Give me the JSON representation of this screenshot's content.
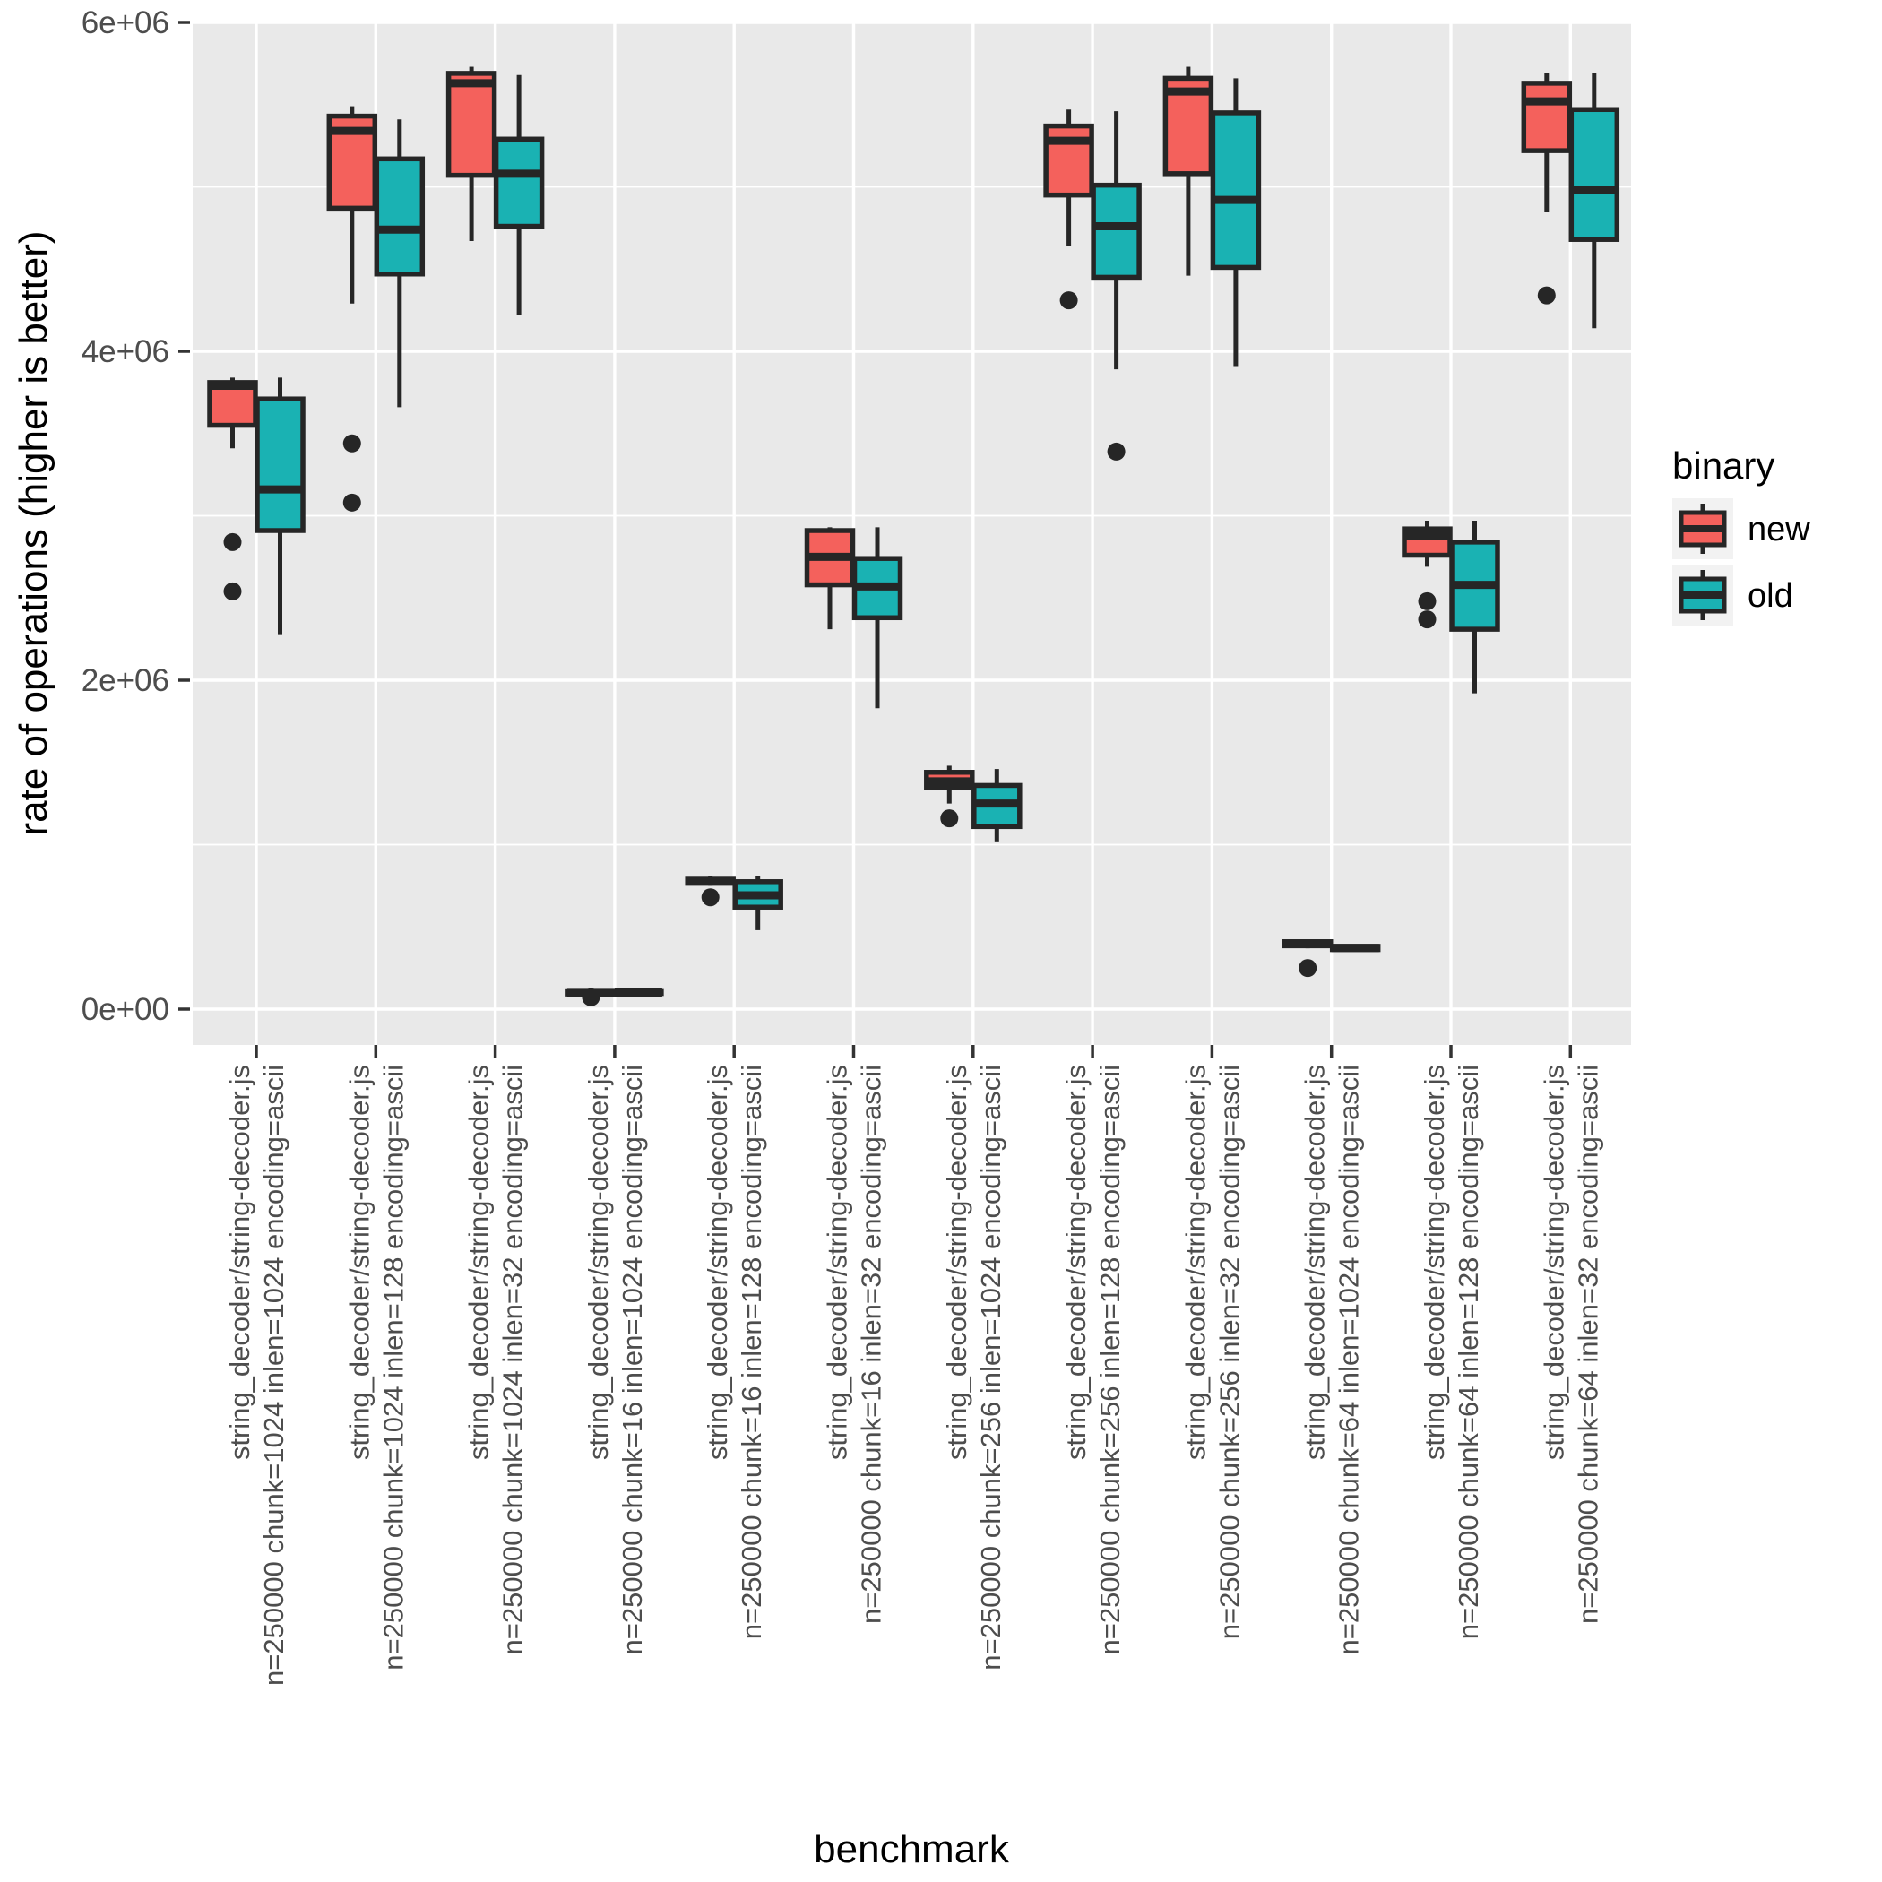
{
  "chart_data": {
    "type": "boxplot",
    "xlabel": "benchmark",
    "ylabel": "rate of operations (higher is better)",
    "y_ticks": [
      {
        "label": "0e+00",
        "value": 0
      },
      {
        "label": "2e+06",
        "value": 2000000
      },
      {
        "label": "4e+06",
        "value": 4000000
      },
      {
        "label": "6e+06",
        "value": 6000000
      }
    ],
    "ylim": [
      -213000,
      6005000
    ],
    "grid": "on",
    "legend_position": "right",
    "legend": {
      "title": "binary",
      "entries": [
        {
          "label": "new",
          "color": "#F4615C"
        },
        {
          "label": "old",
          "color": "#1AB2B3"
        }
      ]
    },
    "colors": {
      "panel_bg": "#E9E9E9",
      "gridline": "#FFFFFF",
      "box_stroke": "#262626",
      "axis_text": "#4D4D4D",
      "key_bg": "#F2F2F2"
    },
    "categories": [
      {
        "line1": "string_decoder/string-decoder.js",
        "line2": "n=250000 chunk=1024 inlen=1024 encoding=ascii"
      },
      {
        "line1": "string_decoder/string-decoder.js",
        "line2": "n=250000 chunk=1024 inlen=128 encoding=ascii"
      },
      {
        "line1": "string_decoder/string-decoder.js",
        "line2": "n=250000 chunk=1024 inlen=32 encoding=ascii"
      },
      {
        "line1": "string_decoder/string-decoder.js",
        "line2": "n=250000 chunk=16 inlen=1024 encoding=ascii"
      },
      {
        "line1": "string_decoder/string-decoder.js",
        "line2": "n=250000 chunk=16 inlen=128 encoding=ascii"
      },
      {
        "line1": "string_decoder/string-decoder.js",
        "line2": "n=250000 chunk=16 inlen=32 encoding=ascii"
      },
      {
        "line1": "string_decoder/string-decoder.js",
        "line2": "n=250000 chunk=256 inlen=1024 encoding=ascii"
      },
      {
        "line1": "string_decoder/string-decoder.js",
        "line2": "n=250000 chunk=256 inlen=128 encoding=ascii"
      },
      {
        "line1": "string_decoder/string-decoder.js",
        "line2": "n=250000 chunk=256 inlen=32 encoding=ascii"
      },
      {
        "line1": "string_decoder/string-decoder.js",
        "line2": "n=250000 chunk=64 inlen=1024 encoding=ascii"
      },
      {
        "line1": "string_decoder/string-decoder.js",
        "line2": "n=250000 chunk=64 inlen=128 encoding=ascii"
      },
      {
        "line1": "string_decoder/string-decoder.js",
        "line2": "n=250000 chunk=64 inlen=32 encoding=ascii"
      }
    ],
    "series": [
      {
        "name": "new",
        "color": "#F4615C",
        "boxes": [
          {
            "whislo": 3410000,
            "q1": 3550000,
            "med": 3790000,
            "q3": 3810000,
            "whishi": 3840000,
            "outliers": [
              2840000,
              2540000
            ]
          },
          {
            "whislo": 4290000,
            "q1": 4870000,
            "med": 5340000,
            "q3": 5430000,
            "whishi": 5490000,
            "outliers": [
              3440000,
              3080000
            ]
          },
          {
            "whislo": 4670000,
            "q1": 5070000,
            "med": 5630000,
            "q3": 5690000,
            "whishi": 5730000,
            "outliers": []
          },
          {
            "whislo": 85000,
            "q1": 92000,
            "med": 99000,
            "q3": 106000,
            "whishi": 113000,
            "outliers": [
              72000
            ]
          },
          {
            "whislo": 750000,
            "q1": 765000,
            "med": 778000,
            "q3": 790000,
            "whishi": 812000,
            "outliers": [
              680000
            ]
          },
          {
            "whislo": 2310000,
            "q1": 2580000,
            "med": 2750000,
            "q3": 2910000,
            "whishi": 2930000,
            "outliers": []
          },
          {
            "whislo": 1250000,
            "q1": 1350000,
            "med": 1385000,
            "q3": 1440000,
            "whishi": 1480000,
            "outliers": [
              1160000
            ]
          },
          {
            "whislo": 4640000,
            "q1": 4950000,
            "med": 5280000,
            "q3": 5370000,
            "whishi": 5470000,
            "outliers": [
              4310000
            ]
          },
          {
            "whislo": 4460000,
            "q1": 5080000,
            "med": 5580000,
            "q3": 5660000,
            "whishi": 5730000,
            "outliers": []
          },
          {
            "whislo": 370000,
            "q1": 385000,
            "med": 398000,
            "q3": 410000,
            "whishi": 422000,
            "outliers": [
              250000
            ]
          },
          {
            "whislo": 2690000,
            "q1": 2760000,
            "med": 2880000,
            "q3": 2920000,
            "whishi": 2970000,
            "outliers": [
              2480000,
              2370000
            ]
          },
          {
            "whislo": 4850000,
            "q1": 5220000,
            "med": 5520000,
            "q3": 5630000,
            "whishi": 5690000,
            "outliers": [
              4340000
            ]
          }
        ]
      },
      {
        "name": "old",
        "color": "#1AB2B3",
        "boxes": [
          {
            "whislo": 2280000,
            "q1": 2910000,
            "med": 3160000,
            "q3": 3710000,
            "whishi": 3840000,
            "outliers": []
          },
          {
            "whislo": 3660000,
            "q1": 4470000,
            "med": 4740000,
            "q3": 5170000,
            "whishi": 5410000,
            "outliers": []
          },
          {
            "whislo": 4220000,
            "q1": 4760000,
            "med": 5080000,
            "q3": 5290000,
            "whishi": 5680000,
            "outliers": []
          },
          {
            "whislo": 88000,
            "q1": 95000,
            "med": 101000,
            "q3": 107000,
            "whishi": 113000,
            "outliers": []
          },
          {
            "whislo": 480000,
            "q1": 620000,
            "med": 692000,
            "q3": 775000,
            "whishi": 810000,
            "outliers": []
          },
          {
            "whislo": 1830000,
            "q1": 2380000,
            "med": 2570000,
            "q3": 2740000,
            "whishi": 2930000,
            "outliers": []
          },
          {
            "whislo": 1020000,
            "q1": 1110000,
            "med": 1250000,
            "q3": 1360000,
            "whishi": 1460000,
            "outliers": []
          },
          {
            "whislo": 3890000,
            "q1": 4450000,
            "med": 4760000,
            "q3": 5010000,
            "whishi": 5460000,
            "outliers": [
              3390000
            ]
          },
          {
            "whislo": 3910000,
            "q1": 4510000,
            "med": 4920000,
            "q3": 5450000,
            "whishi": 5660000,
            "outliers": []
          },
          {
            "whislo": 350000,
            "q1": 362000,
            "med": 372000,
            "q3": 382000,
            "whishi": 392000,
            "outliers": []
          },
          {
            "whislo": 1920000,
            "q1": 2310000,
            "med": 2580000,
            "q3": 2840000,
            "whishi": 2970000,
            "outliers": []
          },
          {
            "whislo": 4140000,
            "q1": 4680000,
            "med": 4980000,
            "q3": 5470000,
            "whishi": 5690000,
            "outliers": []
          }
        ]
      }
    ]
  }
}
